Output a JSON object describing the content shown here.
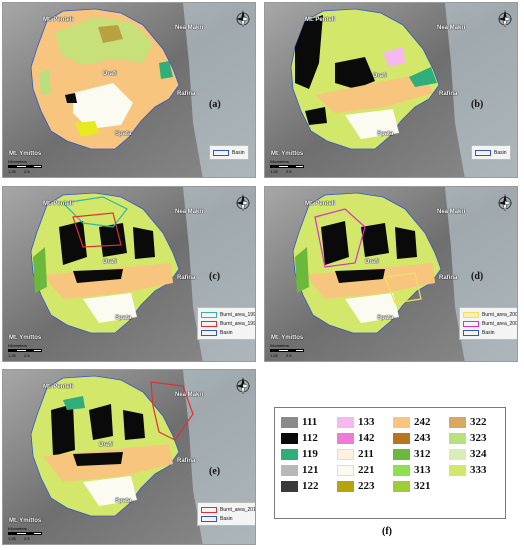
{
  "panels": [
    {
      "label": "(a)",
      "places": {
        "pentelis": "Mt. Penteli",
        "neamakri": "Nea Makri",
        "rafina": "Rafina",
        "draf": "Drafi",
        "spata": "Spata",
        "ymittos": "Mt. Ymittos"
      },
      "scale": {
        "unit": "Kilometers",
        "ticks": [
          "1.25",
          "2.5"
        ]
      },
      "legend": [
        {
          "label": "Basin",
          "color": "#3355cc"
        }
      ]
    },
    {
      "label": "(b)",
      "places": {
        "pentelis": "Mt. Penteli",
        "neamakri": "Nea Makri",
        "rafina": "Rafina",
        "draf": "Drafi",
        "spata": "Spata",
        "ymittos": "Mt. Ymittos"
      },
      "scale": {
        "unit": "Kilometers",
        "ticks": [
          "1.25",
          "2.5"
        ]
      },
      "legend": [
        {
          "label": "Basin",
          "color": "#3355cc"
        }
      ]
    },
    {
      "label": "(c)",
      "places": {
        "pentelis": "Mt. Penteli",
        "neamakri": "Nea Makri",
        "rafina": "Rafina",
        "draf": "Drafi",
        "spata": "Spata",
        "ymittos": "Mt. Ymittos"
      },
      "scale": {
        "unit": "Kilometers",
        "ticks": [
          "1.25",
          "2.5"
        ]
      },
      "legend": [
        {
          "label": "Burnt_area_1995",
          "color": "#2fb7a4"
        },
        {
          "label": "Burnt_area_1998",
          "color": "#e03030"
        },
        {
          "label": "Basin",
          "color": "#3355cc"
        }
      ]
    },
    {
      "label": "(d)",
      "places": {
        "pentelis": "Mt. Penteli",
        "neamakri": "Nea Makri",
        "rafina": "Rafina",
        "draf": "Drafi",
        "spata": "Spata",
        "ymittos": "Mt. Ymittos"
      },
      "scale": {
        "unit": "Kilometers",
        "ticks": [
          "1.25",
          "2.5"
        ]
      },
      "legend": [
        {
          "label": "Burnt_area_2005",
          "color": "#f0e060"
        },
        {
          "label": "Burnt_area_2009",
          "color": "#e030c0"
        },
        {
          "label": "Basin",
          "color": "#3355cc"
        }
      ]
    },
    {
      "label": "(e)",
      "places": {
        "pentelis": "Mt. Penteli",
        "neamakri": "Nea Makri",
        "rafina": "Rafina",
        "draf": "Drafi",
        "spata": "Spata",
        "ymittos": "Mt. Ymittos"
      },
      "scale": {
        "unit": "Kilometers",
        "ticks": [
          "1.25",
          "2.5"
        ]
      },
      "legend": [
        {
          "label": "Burnt_area_2018",
          "color": "#e03030"
        },
        {
          "label": "Basin",
          "color": "#3355cc"
        }
      ]
    }
  ],
  "clc_legend": {
    "label": "(f)",
    "items": [
      {
        "code": "111",
        "color": "#8a8a8a"
      },
      {
        "code": "133",
        "color": "#f5b8f0"
      },
      {
        "code": "242",
        "color": "#f7c57e"
      },
      {
        "code": "322",
        "color": "#d9a860"
      },
      {
        "code": "112",
        "color": "#0a0a0a"
      },
      {
        "code": "142",
        "color": "#f07ad8"
      },
      {
        "code": "243",
        "color": "#b8741e"
      },
      {
        "code": "323",
        "color": "#b9e07e"
      },
      {
        "code": "119",
        "color": "#2fae7a"
      },
      {
        "code": "211",
        "color": "#fdf0de"
      },
      {
        "code": "312",
        "color": "#6ab83c"
      },
      {
        "code": "324",
        "color": "#d9edb8"
      },
      {
        "code": "121",
        "color": "#b8b8b8"
      },
      {
        "code": "221",
        "color": "#fbfbf2"
      },
      {
        "code": "313",
        "color": "#8ee050"
      },
      {
        "code": "333",
        "color": "#d3e86a"
      },
      {
        "code": "122",
        "color": "#3a3a3a"
      },
      {
        "code": "223",
        "color": "#b7a40a"
      },
      {
        "code": "321",
        "color": "#9fcc3a"
      }
    ]
  }
}
